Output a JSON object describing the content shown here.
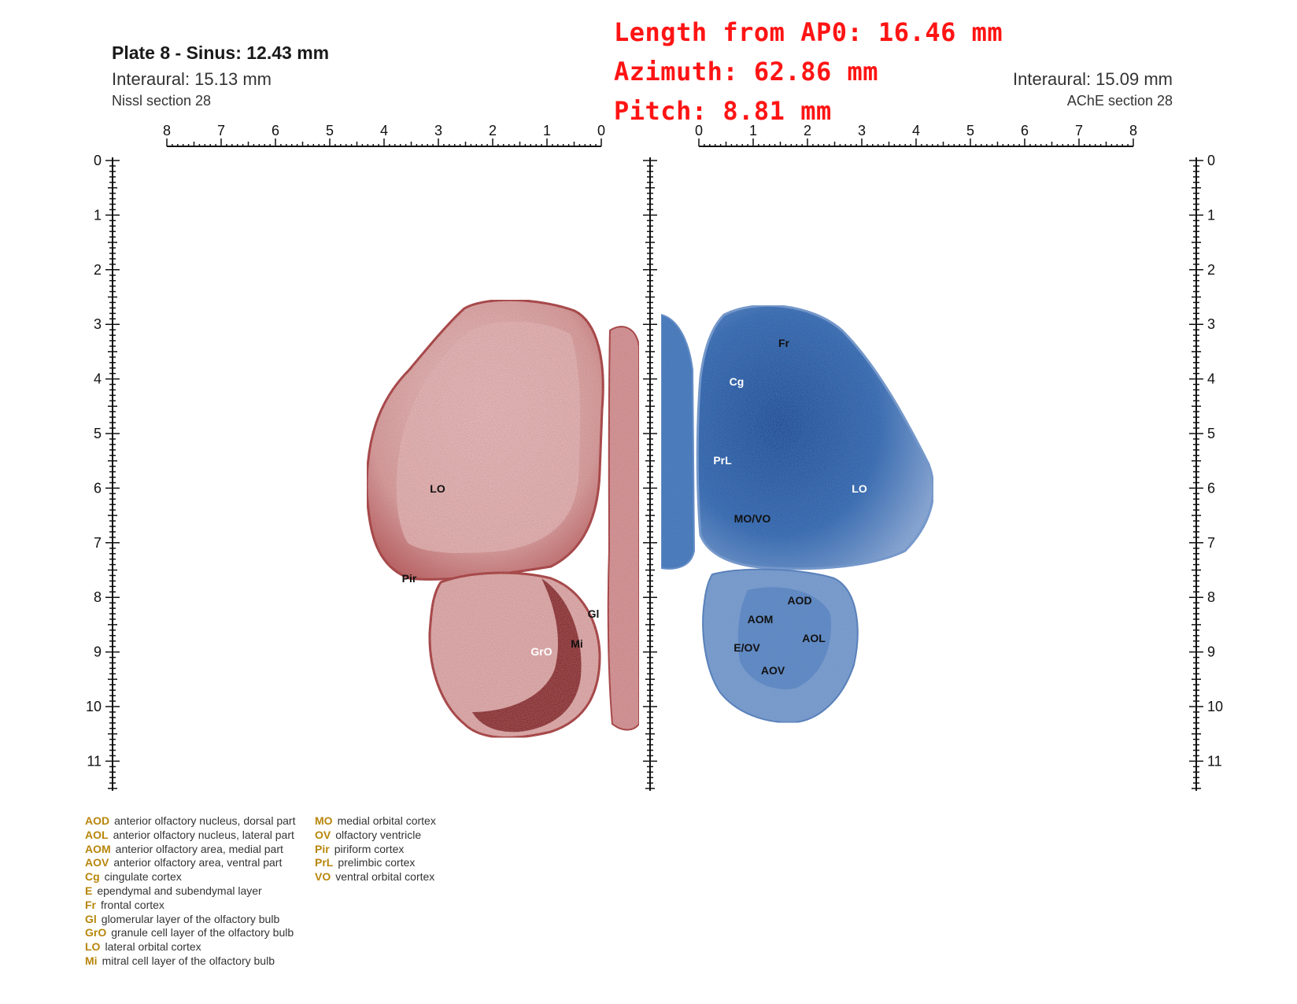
{
  "header": {
    "plate": "Plate 8 - Sinus: 12.43 mm",
    "interaural_left": "Interaural: 15.13 mm",
    "section_left": "Nissl section 28",
    "interaural_right": "Interaural: 15.09 mm",
    "section_right": "AChE section 28"
  },
  "overlay": {
    "length": "Length from AP0: 16.46 mm",
    "azimuth": "Azimuth: 62.86 mm",
    "pitch": "Pitch: 8.81 mm"
  },
  "scales": {
    "left_top_ticks": [
      "8",
      "7",
      "6",
      "5",
      "4",
      "3",
      "2",
      "1",
      "0"
    ],
    "right_top_ticks": [
      "0",
      "1",
      "2",
      "3",
      "4",
      "5",
      "6",
      "7",
      "8"
    ],
    "vertical_ticks": [
      "0",
      "1",
      "2",
      "3",
      "4",
      "5",
      "6",
      "7",
      "8",
      "9",
      "10",
      "11"
    ]
  },
  "labels_nissl": [
    "LO",
    "Pir",
    "Gl",
    "Mi",
    "GrO"
  ],
  "labels_ache": [
    "Fr",
    "Cg",
    "PrL",
    "LO",
    "MO/VO",
    "AOD",
    "AOM",
    "AOL",
    "E/OV",
    "AOV"
  ],
  "colors": {
    "nissl": "#a8474a",
    "ache": "#2a5a9a",
    "abbr": "#b8860b",
    "overlay": "#ff1414"
  },
  "legend_left": [
    {
      "abbr": "AOD",
      "desc": "anterior olfactory nucleus, dorsal part"
    },
    {
      "abbr": "AOL",
      "desc": "anterior olfactory nucleus, lateral part"
    },
    {
      "abbr": "AOM",
      "desc": "anterior olfactory area, medial part"
    },
    {
      "abbr": "AOV",
      "desc": "anterior olfactory area, ventral part"
    },
    {
      "abbr": "Cg",
      "desc": "cingulate cortex"
    },
    {
      "abbr": "E",
      "desc": "ependymal and subendymal layer"
    },
    {
      "abbr": "Fr",
      "desc": "frontal cortex"
    },
    {
      "abbr": "Gl",
      "desc": "glomerular layer of the olfactory bulb"
    },
    {
      "abbr": "GrO",
      "desc": "granule cell layer of the olfactory bulb"
    },
    {
      "abbr": "LO",
      "desc": "lateral orbital cortex"
    },
    {
      "abbr": "Mi",
      "desc": "mitral cell layer of the olfactory bulb"
    }
  ],
  "legend_right": [
    {
      "abbr": "MO",
      "desc": "medial orbital cortex"
    },
    {
      "abbr": "OV",
      "desc": "olfactory ventricle"
    },
    {
      "abbr": "Pir",
      "desc": "piriform cortex"
    },
    {
      "abbr": "PrL",
      "desc": "prelimbic cortex"
    },
    {
      "abbr": "VO",
      "desc": "ventral orbital cortex"
    }
  ]
}
